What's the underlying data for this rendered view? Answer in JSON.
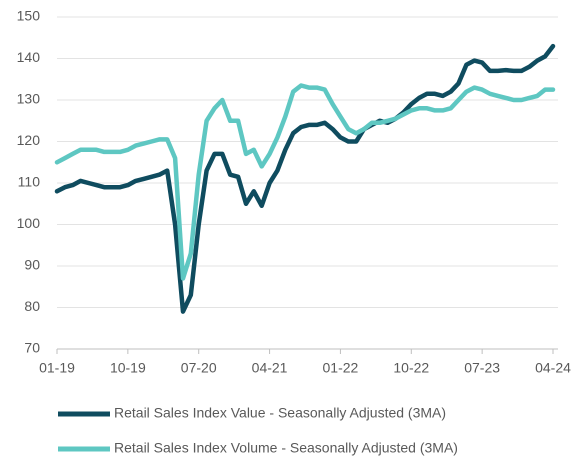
{
  "chart_data": {
    "type": "line",
    "categories": [
      "01-19",
      null,
      null,
      null,
      null,
      null,
      null,
      null,
      null,
      "10-19",
      null,
      null,
      null,
      null,
      null,
      null,
      null,
      null,
      "07-20",
      null,
      null,
      null,
      null,
      null,
      null,
      null,
      null,
      "04-21",
      null,
      null,
      null,
      null,
      null,
      null,
      null,
      null,
      "01-22",
      null,
      null,
      null,
      null,
      null,
      null,
      null,
      null,
      "10-22",
      null,
      null,
      null,
      null,
      null,
      null,
      null,
      null,
      "07-23",
      null,
      null,
      null,
      null,
      null,
      null,
      null,
      null,
      "04-24"
    ],
    "series": [
      {
        "name": "Retail Sales Index Value - Seasonally Adjusted (3MA)",
        "color": "#0f4c5f",
        "values": [
          108,
          109,
          109.5,
          110.5,
          110,
          109.5,
          109,
          109,
          109,
          109.5,
          110.5,
          111,
          111.5,
          112,
          113,
          100,
          79,
          83,
          100,
          113,
          117,
          117,
          112,
          111.5,
          105,
          108,
          104.5,
          110,
          113,
          118,
          122,
          123.5,
          124,
          124,
          124.5,
          123,
          121,
          120,
          120,
          123,
          124,
          125,
          124.5,
          125.5,
          127,
          129,
          130.5,
          131.5,
          131.5,
          131,
          132,
          134,
          138.5,
          139.5,
          139,
          137,
          137,
          137.2,
          137,
          137,
          138,
          139.5,
          140.5,
          143
        ]
      },
      {
        "name": "Retail Sales Index Volume - Seasonally Adjusted (3MA)",
        "color": "#5ec7c2",
        "values": [
          115,
          116,
          117,
          118,
          118,
          118,
          117.5,
          117.5,
          117.5,
          118,
          119,
          119.5,
          120,
          120.5,
          120.5,
          116,
          87,
          93,
          112,
          125,
          128,
          130,
          125,
          125,
          117,
          118,
          114,
          117,
          121,
          126,
          132,
          133.5,
          133,
          133,
          132.5,
          129,
          126,
          123,
          122,
          123,
          124.5,
          124.5,
          125,
          125.5,
          126.5,
          127.5,
          128,
          128,
          127.5,
          127.5,
          128,
          130,
          132,
          133,
          132.5,
          131.5,
          131,
          130.5,
          130,
          130,
          130.5,
          131,
          132.5,
          132.5
        ]
      }
    ],
    "ylim": [
      70,
      150
    ],
    "yticks": [
      70,
      80,
      90,
      100,
      110,
      120,
      130,
      140,
      150
    ],
    "grid": true,
    "legend": "bottom"
  }
}
